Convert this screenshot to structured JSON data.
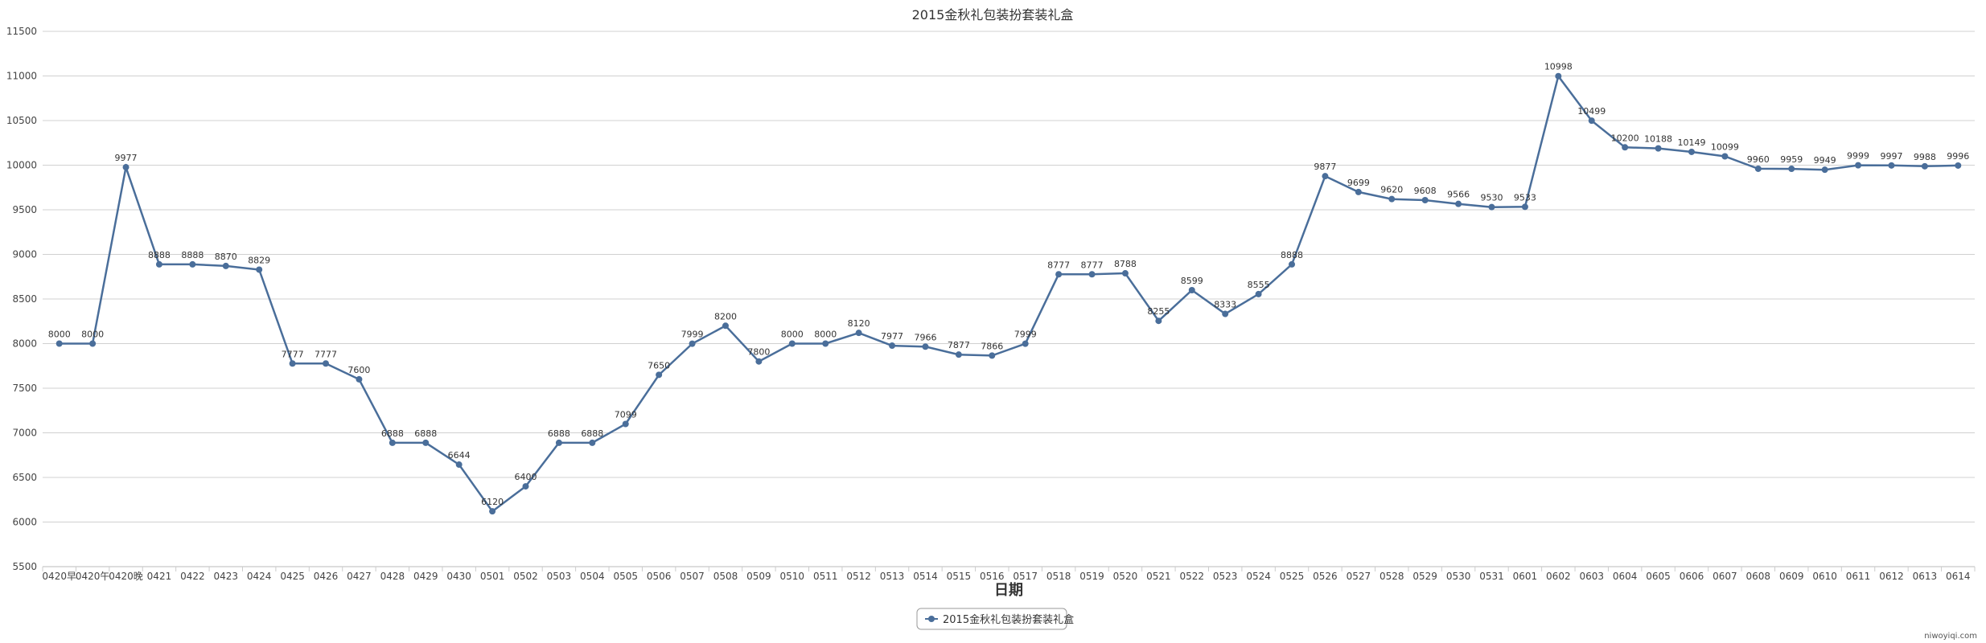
{
  "chart_data": {
    "type": "line",
    "title": "2015金秋礼包装扮套装礼盒",
    "xlabel": "日期",
    "ylabel": "",
    "ylim": [
      5500,
      11500
    ],
    "yticks": [
      5500,
      6000,
      6500,
      7000,
      7500,
      8000,
      8500,
      9000,
      9500,
      10000,
      10500,
      11000,
      11500
    ],
    "grid": true,
    "legend_position": "bottom-center",
    "categories": [
      "0420早",
      "0420午",
      "0420晚",
      "0421",
      "0422",
      "0423",
      "0424",
      "0425",
      "0426",
      "0427",
      "0428",
      "0429",
      "0430",
      "0501",
      "0502",
      "0503",
      "0504",
      "0505",
      "0506",
      "0507",
      "0508",
      "0509",
      "0510",
      "0511",
      "0512",
      "0513",
      "0514",
      "0515",
      "0516",
      "0517",
      "0518",
      "0519",
      "0520",
      "0521",
      "0522",
      "0523",
      "0524",
      "0525",
      "0526",
      "0527",
      "0528",
      "0529",
      "0530",
      "0531",
      "0601",
      "0602",
      "0603",
      "0604",
      "0605",
      "0606",
      "0607",
      "0608",
      "0609",
      "0610",
      "0611",
      "0612",
      "0613",
      "0614"
    ],
    "series": [
      {
        "name": "2015金秋礼包装扮套装礼盒",
        "color": "#4a6e9a",
        "values": [
          8000,
          8000,
          9977,
          8888,
          8888,
          8870,
          8829,
          7777,
          7777,
          7600,
          6888,
          6888,
          6644,
          6120,
          6400,
          6888,
          6888,
          7099,
          7650,
          7999,
          8200,
          7800,
          8000,
          8000,
          8120,
          7977,
          7966,
          7877,
          7866,
          7999,
          8777,
          8777,
          8788,
          8255,
          8599,
          8333,
          8555,
          8888,
          9877,
          9699,
          9620,
          9608,
          9566,
          9530,
          9533,
          10998,
          10499,
          10200,
          10188,
          10149,
          10099,
          9960,
          9959,
          9949,
          9999,
          9997,
          9988,
          9996
        ]
      }
    ],
    "credit": "niwoyiqi.com"
  }
}
